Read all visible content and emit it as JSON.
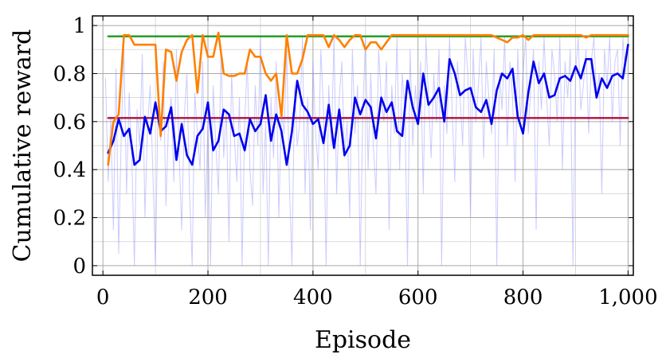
{
  "chart_data": {
    "type": "line",
    "title": "",
    "xlabel": "Episode",
    "ylabel": "Cumulative reward",
    "xlim": [
      -20,
      1010
    ],
    "ylim": [
      -0.04,
      1.04
    ],
    "x_ticks": [
      0,
      200,
      400,
      600,
      800,
      1000
    ],
    "x_tick_labels": [
      "0",
      "200",
      "400",
      "600",
      "800",
      "1,000"
    ],
    "y_ticks": [
      0,
      0.2,
      0.4,
      0.6,
      0.8,
      1
    ],
    "y_tick_labels": [
      "0",
      "0.2",
      "0.4",
      "0.6",
      "0.8",
      "1"
    ],
    "grid": true,
    "minor_grid": true,
    "legend": "none",
    "series": [
      {
        "style": "horizontal-line",
        "color": "#1a9a1a",
        "x": [
          10,
          1000
        ],
        "y": [
          0.955,
          0.955
        ]
      },
      {
        "style": "horizontal-line",
        "color": "#b0103a",
        "x": [
          10,
          1000
        ],
        "y": [
          0.615,
          0.615
        ]
      },
      {
        "style": "noisy-raw",
        "color": "#8c8cff",
        "opacity": 0.45,
        "x_start": 5,
        "x_step": 5,
        "y": [
          0.78,
          0.35,
          0.62,
          0.15,
          0.82,
          0.05,
          0.55,
          0.9,
          0.3,
          0.72,
          0.45,
          0.0,
          0.65,
          0.5,
          0.88,
          0.2,
          0.58,
          0.75,
          0.4,
          0.0,
          0.68,
          0.52,
          0.85,
          0.25,
          0.6,
          0.7,
          0.35,
          0.9,
          0.48,
          0.15,
          0.62,
          0.8,
          0.3,
          0.0,
          0.72,
          0.55,
          0.4,
          0.85,
          0.2,
          0.6,
          0.0,
          0.75,
          0.5,
          0.3,
          0.9,
          0.45,
          0.65,
          0.1,
          0.8,
          0.55,
          0.35,
          0.7,
          0.0,
          0.6,
          0.85,
          0.4,
          0.25,
          0.75,
          0.5,
          0.95,
          0.3,
          0.6,
          0.0,
          0.7,
          0.45,
          0.85,
          0.2,
          0.65,
          0.55,
          0.9,
          0.35,
          0.0,
          0.75,
          0.5,
          0.6,
          0.95,
          0.3,
          0.7,
          0.15,
          0.85,
          0.55,
          0.4,
          0.9,
          0.65,
          0.0,
          0.75,
          0.5,
          0.95,
          0.3,
          0.7,
          0.85,
          0.45,
          0.6,
          0.2,
          0.9,
          0.55,
          0.75,
          0.0,
          0.65,
          0.95,
          0.4,
          0.8,
          0.5,
          0.3,
          0.9,
          0.7,
          0.6,
          0.85,
          0.15,
          0.75,
          0.55,
          0.95,
          0.4,
          0.8,
          0.65,
          0.0,
          0.9,
          0.5,
          0.75,
          0.6,
          0.85,
          0.3,
          0.95,
          0.7,
          0.45,
          0.8,
          0.6,
          0.9,
          0.0,
          0.75,
          0.55,
          0.95,
          0.65,
          0.35,
          0.85,
          0.7,
          0.5,
          0.95,
          0.8,
          0.2,
          0.9,
          0.6,
          0.75,
          0.95,
          0.45,
          0.85,
          0.7,
          0.55,
          0.9,
          0.0,
          0.8,
          0.65,
          0.95,
          0.5,
          0.85,
          0.7,
          0.35,
          0.9,
          0.6,
          0.8,
          0.95,
          0.55,
          0.75,
          0.9,
          0.15,
          0.85,
          0.65,
          0.95,
          0.7,
          0.5,
          0.9,
          0.8,
          0.6,
          0.95,
          0.4,
          0.85,
          0.7,
          0.9,
          0.0,
          0.8,
          0.95,
          0.65,
          0.75,
          0.9,
          0.55,
          0.85,
          0.95,
          0.7,
          0.8,
          0.3,
          0.9,
          0.75,
          0.95,
          0.6,
          0.85,
          0.9,
          0.5,
          0.95,
          0.8
        ]
      },
      {
        "style": "line",
        "color": "#0000ee",
        "x": [
          10,
          20,
          30,
          40,
          50,
          60,
          70,
          80,
          90,
          100,
          110,
          120,
          130,
          140,
          150,
          160,
          170,
          180,
          190,
          200,
          210,
          220,
          230,
          240,
          250,
          260,
          270,
          280,
          290,
          300,
          310,
          320,
          330,
          340,
          350,
          360,
          370,
          380,
          390,
          400,
          410,
          420,
          430,
          440,
          450,
          460,
          470,
          480,
          490,
          500,
          510,
          520,
          530,
          540,
          550,
          560,
          570,
          580,
          590,
          600,
          610,
          620,
          630,
          640,
          650,
          660,
          670,
          680,
          690,
          700,
          710,
          720,
          730,
          740,
          750,
          760,
          770,
          780,
          790,
          800,
          810,
          820,
          830,
          840,
          850,
          860,
          870,
          880,
          890,
          900,
          910,
          920,
          930,
          940,
          950,
          960,
          970,
          980,
          990,
          1000
        ],
        "y": [
          0.47,
          0.52,
          0.61,
          0.54,
          0.57,
          0.42,
          0.44,
          0.62,
          0.55,
          0.68,
          0.56,
          0.58,
          0.66,
          0.44,
          0.59,
          0.46,
          0.42,
          0.54,
          0.57,
          0.68,
          0.48,
          0.52,
          0.65,
          0.63,
          0.54,
          0.55,
          0.48,
          0.61,
          0.56,
          0.59,
          0.71,
          0.52,
          0.63,
          0.56,
          0.42,
          0.56,
          0.77,
          0.67,
          0.64,
          0.59,
          0.61,
          0.51,
          0.67,
          0.49,
          0.65,
          0.46,
          0.5,
          0.7,
          0.63,
          0.69,
          0.66,
          0.53,
          0.7,
          0.64,
          0.68,
          0.56,
          0.54,
          0.77,
          0.66,
          0.59,
          0.8,
          0.67,
          0.7,
          0.74,
          0.6,
          0.86,
          0.8,
          0.71,
          0.73,
          0.74,
          0.66,
          0.64,
          0.69,
          0.59,
          0.73,
          0.8,
          0.78,
          0.82,
          0.62,
          0.55,
          0.72,
          0.85,
          0.76,
          0.8,
          0.7,
          0.71,
          0.78,
          0.79,
          0.77,
          0.83,
          0.78,
          0.86,
          0.86,
          0.7,
          0.78,
          0.74,
          0.79,
          0.8,
          0.78,
          0.92
        ]
      },
      {
        "style": "line",
        "color": "#ff8000",
        "x": [
          10,
          20,
          30,
          40,
          50,
          60,
          70,
          80,
          90,
          100,
          110,
          120,
          130,
          140,
          150,
          160,
          170,
          180,
          190,
          200,
          210,
          220,
          230,
          240,
          250,
          260,
          270,
          280,
          290,
          300,
          310,
          320,
          330,
          340,
          350,
          360,
          370,
          380,
          390,
          400,
          410,
          420,
          430,
          440,
          450,
          460,
          470,
          480,
          490,
          500,
          510,
          520,
          530,
          540,
          550,
          560,
          570,
          580,
          590,
          600,
          610,
          620,
          630,
          640,
          650,
          660,
          670,
          680,
          690,
          700,
          710,
          720,
          730,
          740,
          750,
          760,
          770,
          780,
          790,
          800,
          810,
          820,
          830,
          840,
          850,
          860,
          870,
          880,
          890,
          900,
          910,
          920,
          930,
          940,
          950,
          960,
          970,
          980,
          990,
          1000
        ],
        "y": [
          0.42,
          0.6,
          0.63,
          0.96,
          0.96,
          0.92,
          0.92,
          0.92,
          0.92,
          0.92,
          0.54,
          0.9,
          0.89,
          0.77,
          0.89,
          0.94,
          0.96,
          0.72,
          0.96,
          0.87,
          0.87,
          0.97,
          0.8,
          0.79,
          0.79,
          0.8,
          0.8,
          0.9,
          0.87,
          0.87,
          0.8,
          0.77,
          0.8,
          0.62,
          0.96,
          0.8,
          0.8,
          0.86,
          0.96,
          0.96,
          0.96,
          0.96,
          0.91,
          0.96,
          0.94,
          0.91,
          0.94,
          0.96,
          0.96,
          0.9,
          0.93,
          0.93,
          0.9,
          0.93,
          0.96,
          0.96,
          0.96,
          0.96,
          0.96,
          0.96,
          0.96,
          0.96,
          0.96,
          0.96,
          0.96,
          0.96,
          0.96,
          0.96,
          0.96,
          0.96,
          0.96,
          0.96,
          0.96,
          0.96,
          0.95,
          0.94,
          0.93,
          0.95,
          0.95,
          0.96,
          0.94,
          0.96,
          0.96,
          0.96,
          0.96,
          0.96,
          0.96,
          0.96,
          0.96,
          0.96,
          0.96,
          0.95,
          0.96,
          0.96,
          0.96,
          0.96,
          0.96,
          0.96,
          0.96,
          0.96
        ]
      }
    ]
  }
}
